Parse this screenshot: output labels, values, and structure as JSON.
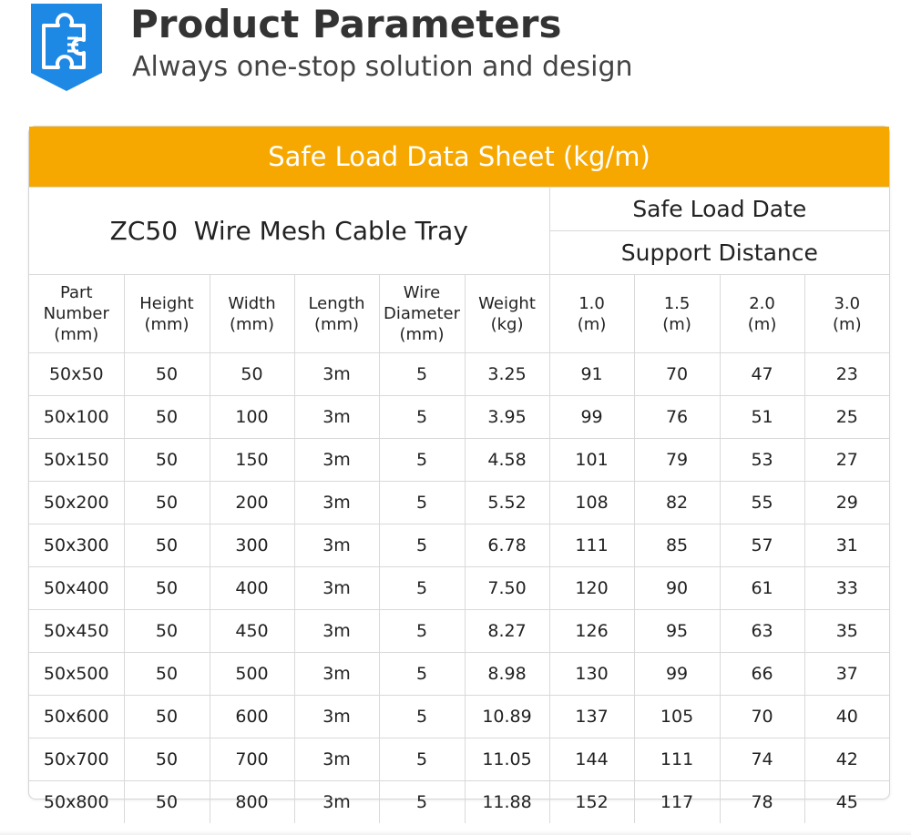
{
  "header": {
    "title": "Product Parameters",
    "subtitle": "Always one-stop solution and design",
    "icon": "puzzle-piece-icon",
    "accent_color": "#1e88e5"
  },
  "sheet": {
    "banner": "Safe Load Data Sheet (kg/m)",
    "banner_color": "#f6a800",
    "model": "ZC50  Wire Mesh Cable Tray",
    "safe_load_label": "Safe Load Date",
    "support_label": "Support Distance",
    "columns": [
      "Part\nNumber\n(mm)",
      "Height\n(mm)",
      "Width\n(mm)",
      "Length\n(mm)",
      "Wire\nDiameter\n(mm)",
      "Weight\n(kg)",
      "1.0\n(m)",
      "1.5\n(m)",
      "2.0\n(m)",
      "3.0\n(m)"
    ],
    "rows": [
      [
        "50x50",
        "50",
        "50",
        "3m",
        "5",
        "3.25",
        "91",
        "70",
        "47",
        "23"
      ],
      [
        "50x100",
        "50",
        "100",
        "3m",
        "5",
        "3.95",
        "99",
        "76",
        "51",
        "25"
      ],
      [
        "50x150",
        "50",
        "150",
        "3m",
        "5",
        "4.58",
        "101",
        "79",
        "53",
        "27"
      ],
      [
        "50x200",
        "50",
        "200",
        "3m",
        "5",
        "5.52",
        "108",
        "82",
        "55",
        "29"
      ],
      [
        "50x300",
        "50",
        "300",
        "3m",
        "5",
        "6.78",
        "111",
        "85",
        "57",
        "31"
      ],
      [
        "50x400",
        "50",
        "400",
        "3m",
        "5",
        "7.50",
        "120",
        "90",
        "61",
        "33"
      ],
      [
        "50x450",
        "50",
        "450",
        "3m",
        "5",
        "8.27",
        "126",
        "95",
        "63",
        "35"
      ],
      [
        "50x500",
        "50",
        "500",
        "3m",
        "5",
        "8.98",
        "130",
        "99",
        "66",
        "37"
      ],
      [
        "50x600",
        "50",
        "600",
        "3m",
        "5",
        "10.89",
        "137",
        "105",
        "70",
        "40"
      ],
      [
        "50x700",
        "50",
        "700",
        "3m",
        "5",
        "11.05",
        "144",
        "111",
        "74",
        "42"
      ],
      [
        "50x800",
        "50",
        "800",
        "3m",
        "5",
        "11.88",
        "152",
        "117",
        "78",
        "45"
      ]
    ]
  }
}
